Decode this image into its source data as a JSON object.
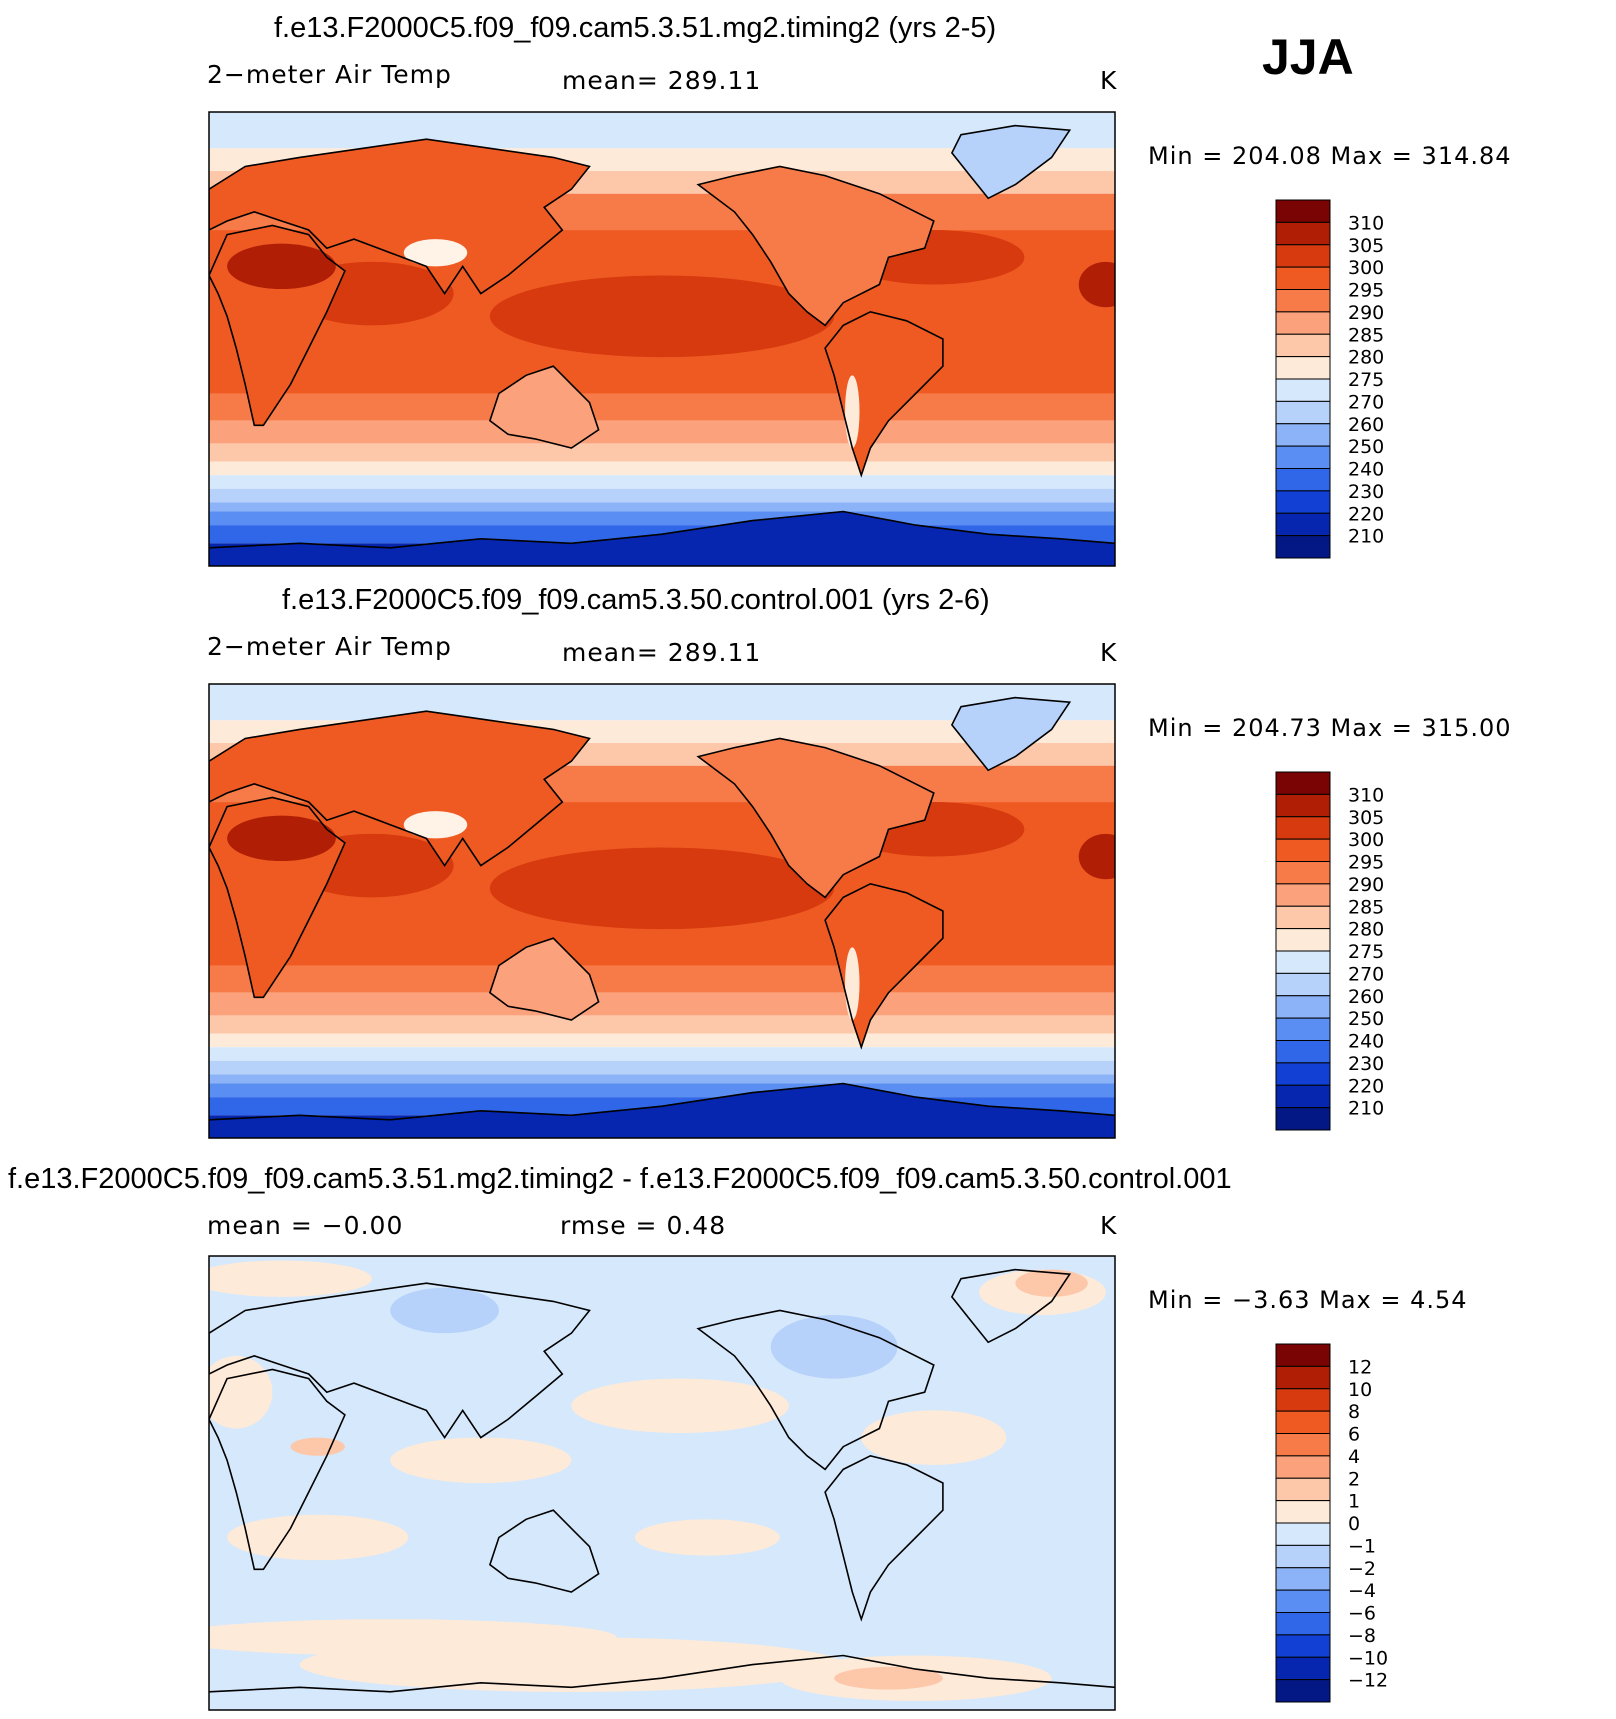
{
  "season": "JJA",
  "panels": [
    {
      "title": "f.e13.F2000C5.f09_f09.cam5.3.51.mg2.timing2 (yrs 2-5)",
      "left_label": "2−meter Air Temp",
      "center_label": "mean=  289.11",
      "units": "K",
      "minmax": "Min  =  204.08  Max  =  314.84",
      "kind": "temp"
    },
    {
      "title": "f.e13.F2000C5.f09_f09.cam5.3.50.control.001 (yrs 2-6)",
      "left_label": "2−meter Air Temp",
      "center_label": "mean=  289.11",
      "units": "K",
      "minmax": "Min  =  204.73  Max  =  315.00",
      "kind": "temp"
    },
    {
      "title": "f.e13.F2000C5.f09_f09.cam5.3.51.mg2.timing2 - f.e13.F2000C5.f09_f09.cam5.3.50.control.001",
      "left_label": "mean =    −0.00",
      "center_label": "rmse =     0.48",
      "units": "K",
      "minmax": "Min  =    −3.63  Max  =     4.54",
      "kind": "diff"
    }
  ],
  "colorbars": {
    "temp": {
      "labels": [
        "310",
        "305",
        "300",
        "295",
        "290",
        "285",
        "280",
        "275",
        "270",
        "260",
        "250",
        "240",
        "230",
        "220",
        "210"
      ],
      "colors": [
        "#7a0403",
        "#b01e05",
        "#d63a0e",
        "#ef5a22",
        "#f77b48",
        "#fba27d",
        "#fdc7aa",
        "#feead8",
        "#d6e8fb",
        "#b6d2fa",
        "#8cb3f7",
        "#5b8ef2",
        "#3066e8",
        "#1240d4",
        "#0626b0",
        "#031785"
      ]
    },
    "diff": {
      "labels": [
        "12",
        "10",
        "8",
        "6",
        "4",
        "2",
        "1",
        "0",
        "−1",
        "−2",
        "−4",
        "−6",
        "−8",
        "−10",
        "−12"
      ],
      "colors": [
        "#7a0403",
        "#b01e05",
        "#d63a0e",
        "#ef5a22",
        "#f77b48",
        "#fba27d",
        "#fdc7aa",
        "#feead8",
        "#d6e8fb",
        "#b6d2fa",
        "#8cb3f7",
        "#5b8ef2",
        "#3066e8",
        "#1240d4",
        "#0626b0",
        "#031785"
      ]
    }
  },
  "chart_data": [
    {
      "type": "heatmap",
      "title": "f.e13.F2000C5.f09_f09.cam5.3.51.mg2.timing2 (yrs 2-5)",
      "variable": "2−meter Air Temp",
      "units": "K",
      "mean": 289.11,
      "min": 204.08,
      "max": 314.84,
      "levels": [
        210,
        220,
        230,
        240,
        250,
        260,
        270,
        275,
        280,
        285,
        290,
        295,
        300,
        305,
        310
      ]
    },
    {
      "type": "heatmap",
      "title": "f.e13.F2000C5.f09_f09.cam5.3.50.control.001 (yrs 2-6)",
      "variable": "2−meter Air Temp",
      "units": "K",
      "mean": 289.11,
      "min": 204.73,
      "max": 315.0,
      "levels": [
        210,
        220,
        230,
        240,
        250,
        260,
        270,
        275,
        280,
        285,
        290,
        295,
        300,
        305,
        310
      ]
    },
    {
      "type": "heatmap",
      "title": "f.e13.F2000C5.f09_f09.cam5.3.51.mg2.timing2 - f.e13.F2000C5.f09_f09.cam5.3.50.control.001",
      "units": "K",
      "mean": -0.0,
      "rmse": 0.48,
      "min": -3.63,
      "max": 4.54,
      "levels": [
        -12,
        -10,
        -8,
        -6,
        -4,
        -2,
        -1,
        0,
        1,
        2,
        4,
        6,
        8,
        10,
        12
      ]
    }
  ]
}
